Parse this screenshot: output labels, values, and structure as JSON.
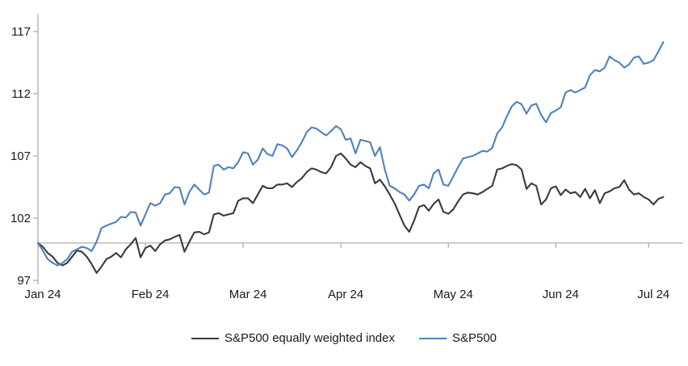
{
  "chart_data": {
    "type": "line",
    "title": "",
    "xlabel": "",
    "ylabel": "",
    "grid": "single horizontal baseline at y=100, vertical y-axis line, no other gridlines",
    "legend_position": "bottom-center",
    "axis_color": "#a6a6a6",
    "text_color": "#1a1a1a",
    "x_axis": {
      "tick_labels": [
        "Jan 24",
        "Feb 24",
        "Mar 24",
        "Apr 24",
        "May 24",
        "Jun 24",
        "Jul 24"
      ],
      "tick_day_indices": [
        0,
        22,
        42,
        62,
        84,
        106,
        125
      ],
      "note": "x is trading days Jan 1 2024 - Jul 5 2024, evenly spaced"
    },
    "y_axis": {
      "ticks": [
        97,
        102,
        107,
        112,
        117
      ],
      "ylim": [
        96.7,
        118.4
      ],
      "baseline_value": 100
    },
    "series": [
      {
        "name": "S&P500 equally weighted index",
        "color": "#3a3a3a",
        "values": [
          100,
          99.7,
          99.2,
          98.9,
          98.4,
          98.2,
          98.4,
          98.9,
          99.4,
          99.3,
          98.9,
          98.3,
          97.6,
          98.1,
          98.7,
          98.9,
          99.2,
          98.85,
          99.5,
          99.9,
          100.4,
          98.85,
          99.6,
          99.8,
          99.35,
          99.9,
          100.2,
          100.3,
          100.5,
          100.65,
          99.3,
          100.1,
          100.85,
          100.9,
          100.7,
          100.85,
          102.3,
          102.4,
          102.2,
          102.3,
          102.4,
          103.4,
          103.6,
          103.6,
          103.2,
          103.9,
          104.6,
          104.4,
          104.4,
          104.7,
          104.7,
          104.8,
          104.5,
          104.9,
          105.2,
          105.7,
          106,
          105.9,
          105.7,
          105.6,
          106.1,
          107,
          107.2,
          106.8,
          106.3,
          106.1,
          106.5,
          106.2,
          106,
          104.8,
          105.1,
          104.55,
          103.9,
          103.2,
          102.3,
          101.4,
          100.9,
          101.8,
          102.9,
          103.05,
          102.6,
          103.15,
          103.5,
          102.5,
          102.35,
          102.7,
          103.35,
          103.9,
          104.05,
          104,
          103.9,
          104.1,
          104.35,
          104.6,
          105.9,
          106,
          106.2,
          106.35,
          106.25,
          105.9,
          104.35,
          104.8,
          104.6,
          103.1,
          103.5,
          104.4,
          104.55,
          103.85,
          104.3,
          104,
          104.1,
          103.7,
          104.35,
          103.6,
          104.25,
          103.2,
          104,
          104.15,
          104.4,
          104.5,
          105.05,
          104.3,
          103.9,
          104,
          103.7,
          103.5,
          103.1,
          103.55,
          103.7
        ]
      },
      {
        "name": "S&P500",
        "color": "#4F81BD",
        "values": [
          100,
          99.4,
          98.7,
          98.4,
          98.2,
          98.4,
          98.7,
          99.3,
          99.5,
          99.7,
          99.6,
          99.35,
          100.1,
          101.2,
          101.4,
          101.55,
          101.7,
          102.1,
          102.05,
          102.5,
          102.45,
          101.4,
          102.3,
          103.2,
          103,
          103.2,
          103.9,
          104,
          104.5,
          104.45,
          103.1,
          104.1,
          104.7,
          104.3,
          103.9,
          104.05,
          106.2,
          106.3,
          105.9,
          106.1,
          106,
          106.5,
          107.3,
          107.2,
          106.3,
          106.7,
          107.6,
          107.15,
          107,
          107.95,
          107.85,
          107.6,
          106.9,
          107.45,
          108.1,
          108.9,
          109.3,
          109.2,
          108.9,
          108.65,
          109,
          109.4,
          109.15,
          108.3,
          108.4,
          107.2,
          108.3,
          108.2,
          108.1,
          107,
          107.7,
          105.9,
          104.6,
          104.4,
          104.1,
          103.9,
          103.4,
          103.9,
          104.6,
          104.7,
          104.4,
          105.6,
          105.9,
          104.7,
          104.6,
          105.35,
          106.1,
          106.8,
          106.9,
          107,
          107.2,
          107.4,
          107.35,
          107.65,
          108.8,
          109.3,
          110.2,
          111,
          111.35,
          111.15,
          110.4,
          111.05,
          111.2,
          110.3,
          109.7,
          110.45,
          110.65,
          110.9,
          112.1,
          112.3,
          112.1,
          112.3,
          112.5,
          113.5,
          113.9,
          113.8,
          114.1,
          115,
          114.7,
          114.5,
          114.1,
          114.35,
          114.9,
          115,
          114.4,
          114.5,
          114.7,
          115.4,
          116.15
        ]
      }
    ]
  },
  "legend": {
    "items": [
      {
        "label": "S&P500 equally weighted index",
        "color": "#3a3a3a"
      },
      {
        "label": "S&P500",
        "color": "#4F81BD"
      }
    ]
  }
}
